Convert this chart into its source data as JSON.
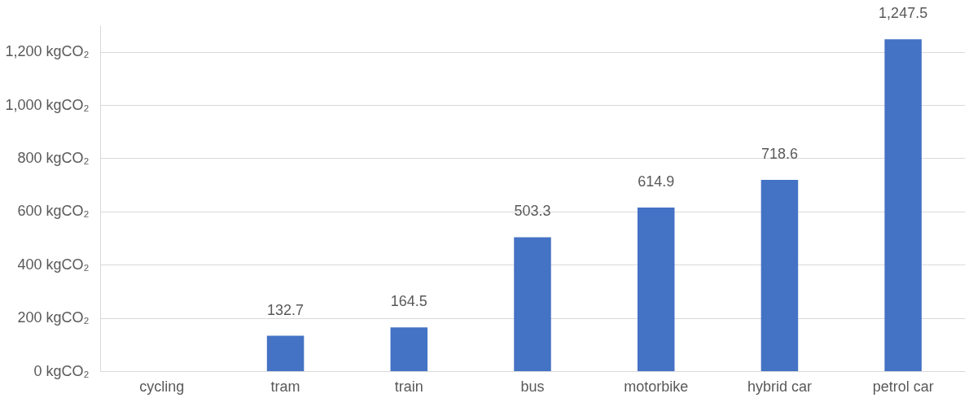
{
  "chart_data": {
    "type": "bar",
    "categories": [
      "cycling",
      "tram",
      "train",
      "bus",
      "motorbike",
      "hybrid car",
      "petrol car"
    ],
    "values": [
      0,
      132.7,
      164.5,
      503.3,
      614.9,
      718.6,
      1247.5
    ],
    "value_labels": [
      null,
      "132.7",
      "164.5",
      "503.3",
      "614.9",
      "718.6",
      "1,247.5"
    ],
    "color": "#4472c4",
    "ylim": [
      0,
      1300
    ],
    "yticks": [
      {
        "value": 0,
        "label": "0 kgCO₂"
      },
      {
        "value": 200,
        "label": "200 kgCO₂"
      },
      {
        "value": 400,
        "label": "400 kgCO₂"
      },
      {
        "value": 600,
        "label": "600 kgCO₂"
      },
      {
        "value": 800,
        "label": "800 kgCO₂"
      },
      {
        "value": 1000,
        "label": "1,000 kgCO₂"
      },
      {
        "value": 1200,
        "label": "1,200 kgCO₂"
      }
    ],
    "grid": "y"
  }
}
